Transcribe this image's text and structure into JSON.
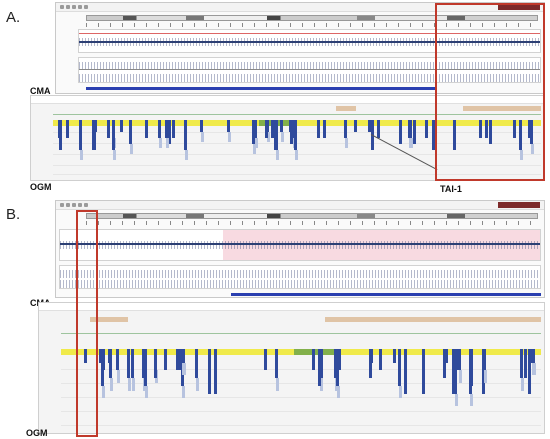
{
  "panels": {
    "a_label": "A.",
    "b_label": "B.",
    "cma_label": "CMA",
    "ogm_label": "OGM",
    "tai_label": "TAI-1"
  },
  "colors": {
    "highlight_box": "#c0392b",
    "copy_number_line": "#2c3f74",
    "ogm_label_track": "#f0ea4a",
    "ogm_marks": "#2f4a9c",
    "gain_region": "#eb96aa",
    "tan_annotation": "#e0c4a6"
  }
}
